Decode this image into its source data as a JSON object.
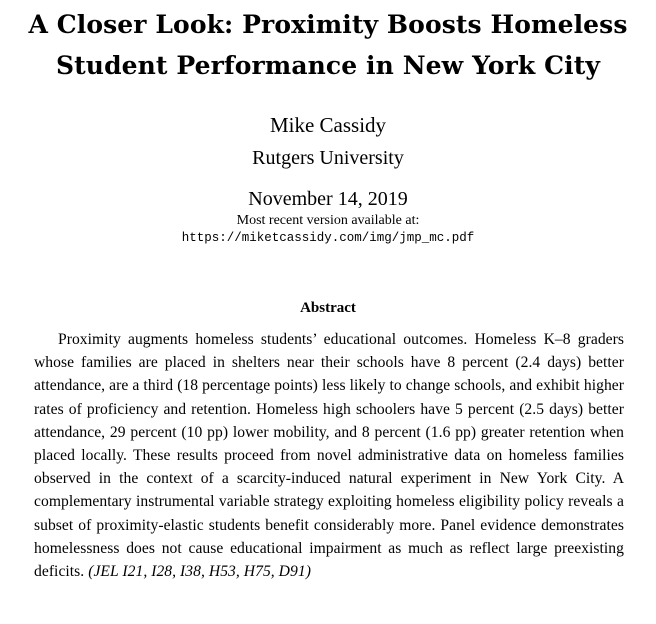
{
  "paper": {
    "title_line1": "A Closer Look: Proximity Boosts Homeless",
    "title_line2": "Student Performance in New York City",
    "author": "Mike Cassidy",
    "affiliation": "Rutgers University",
    "date": "November 14, 2019",
    "version_note": "Most recent version available at:",
    "url": "https://miketcassidy.com/img/jmp_mc.pdf",
    "abstract_heading": "Abstract",
    "abstract_text": "Proximity augments homeless students’ educational outcomes. Homeless K–8 graders whose families are placed in shelters near their schools have 8 percent (2.4 days) better attendance, are a third (18 percentage points) less likely to change schools, and exhibit higher rates of proficiency and retention. Homeless high schoolers have 5 percent (2.5 days) better attendance, 29 percent (10 pp) lower mobility, and 8 percent (1.6 pp) greater retention when placed locally. These results proceed from novel administrative data on homeless families observed in the context of a scarcity-induced natural experiment in New York City. A complementary instrumental variable strategy exploiting homeless eligibility policy reveals a subset of proximity-elastic students benefit considerably more. Panel evidence demonstrates homelessness does not cause educational impairment as much as reflect large preexisting deficits.",
    "jel_codes": "(JEL I21, I28, I38, H53, H75, D91)"
  }
}
